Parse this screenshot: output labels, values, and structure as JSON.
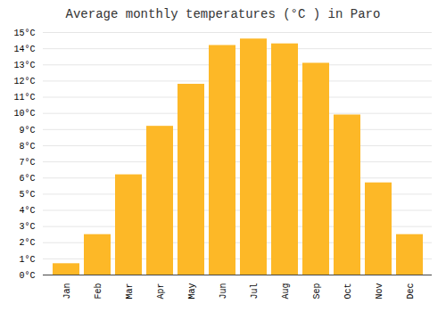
{
  "chart_data": {
    "type": "bar",
    "title": "Average monthly temperatures (°C ) in Paro",
    "categories": [
      "Jan",
      "Feb",
      "Mar",
      "Apr",
      "May",
      "Jun",
      "Jul",
      "Aug",
      "Sep",
      "Oct",
      "Nov",
      "Dec"
    ],
    "values": [
      0.7,
      2.5,
      6.2,
      9.2,
      11.8,
      14.2,
      14.6,
      14.3,
      13.1,
      9.9,
      5.7,
      2.5
    ],
    "color": "#FDB827",
    "ylim": [
      0,
      15
    ],
    "yticks": [
      {
        "value": 0,
        "label": "0°C"
      },
      {
        "value": 1,
        "label": "1°C"
      },
      {
        "value": 2,
        "label": "2°C"
      },
      {
        "value": 3,
        "label": "3°C"
      },
      {
        "value": 4,
        "label": "4°C"
      },
      {
        "value": 5,
        "label": "5°C"
      },
      {
        "value": 6,
        "label": "6°C"
      },
      {
        "value": 7,
        "label": "7°C"
      },
      {
        "value": 8,
        "label": "8°C"
      },
      {
        "value": 9,
        "label": "9°C"
      },
      {
        "value": 10,
        "label": "10°C"
      },
      {
        "value": 11,
        "label": "11°C"
      },
      {
        "value": 12,
        "label": "12°C"
      },
      {
        "value": 13,
        "label": "13°C"
      },
      {
        "value": 14,
        "label": "14°C"
      },
      {
        "value": 15,
        "label": "15°C"
      }
    ],
    "grid": true
  }
}
